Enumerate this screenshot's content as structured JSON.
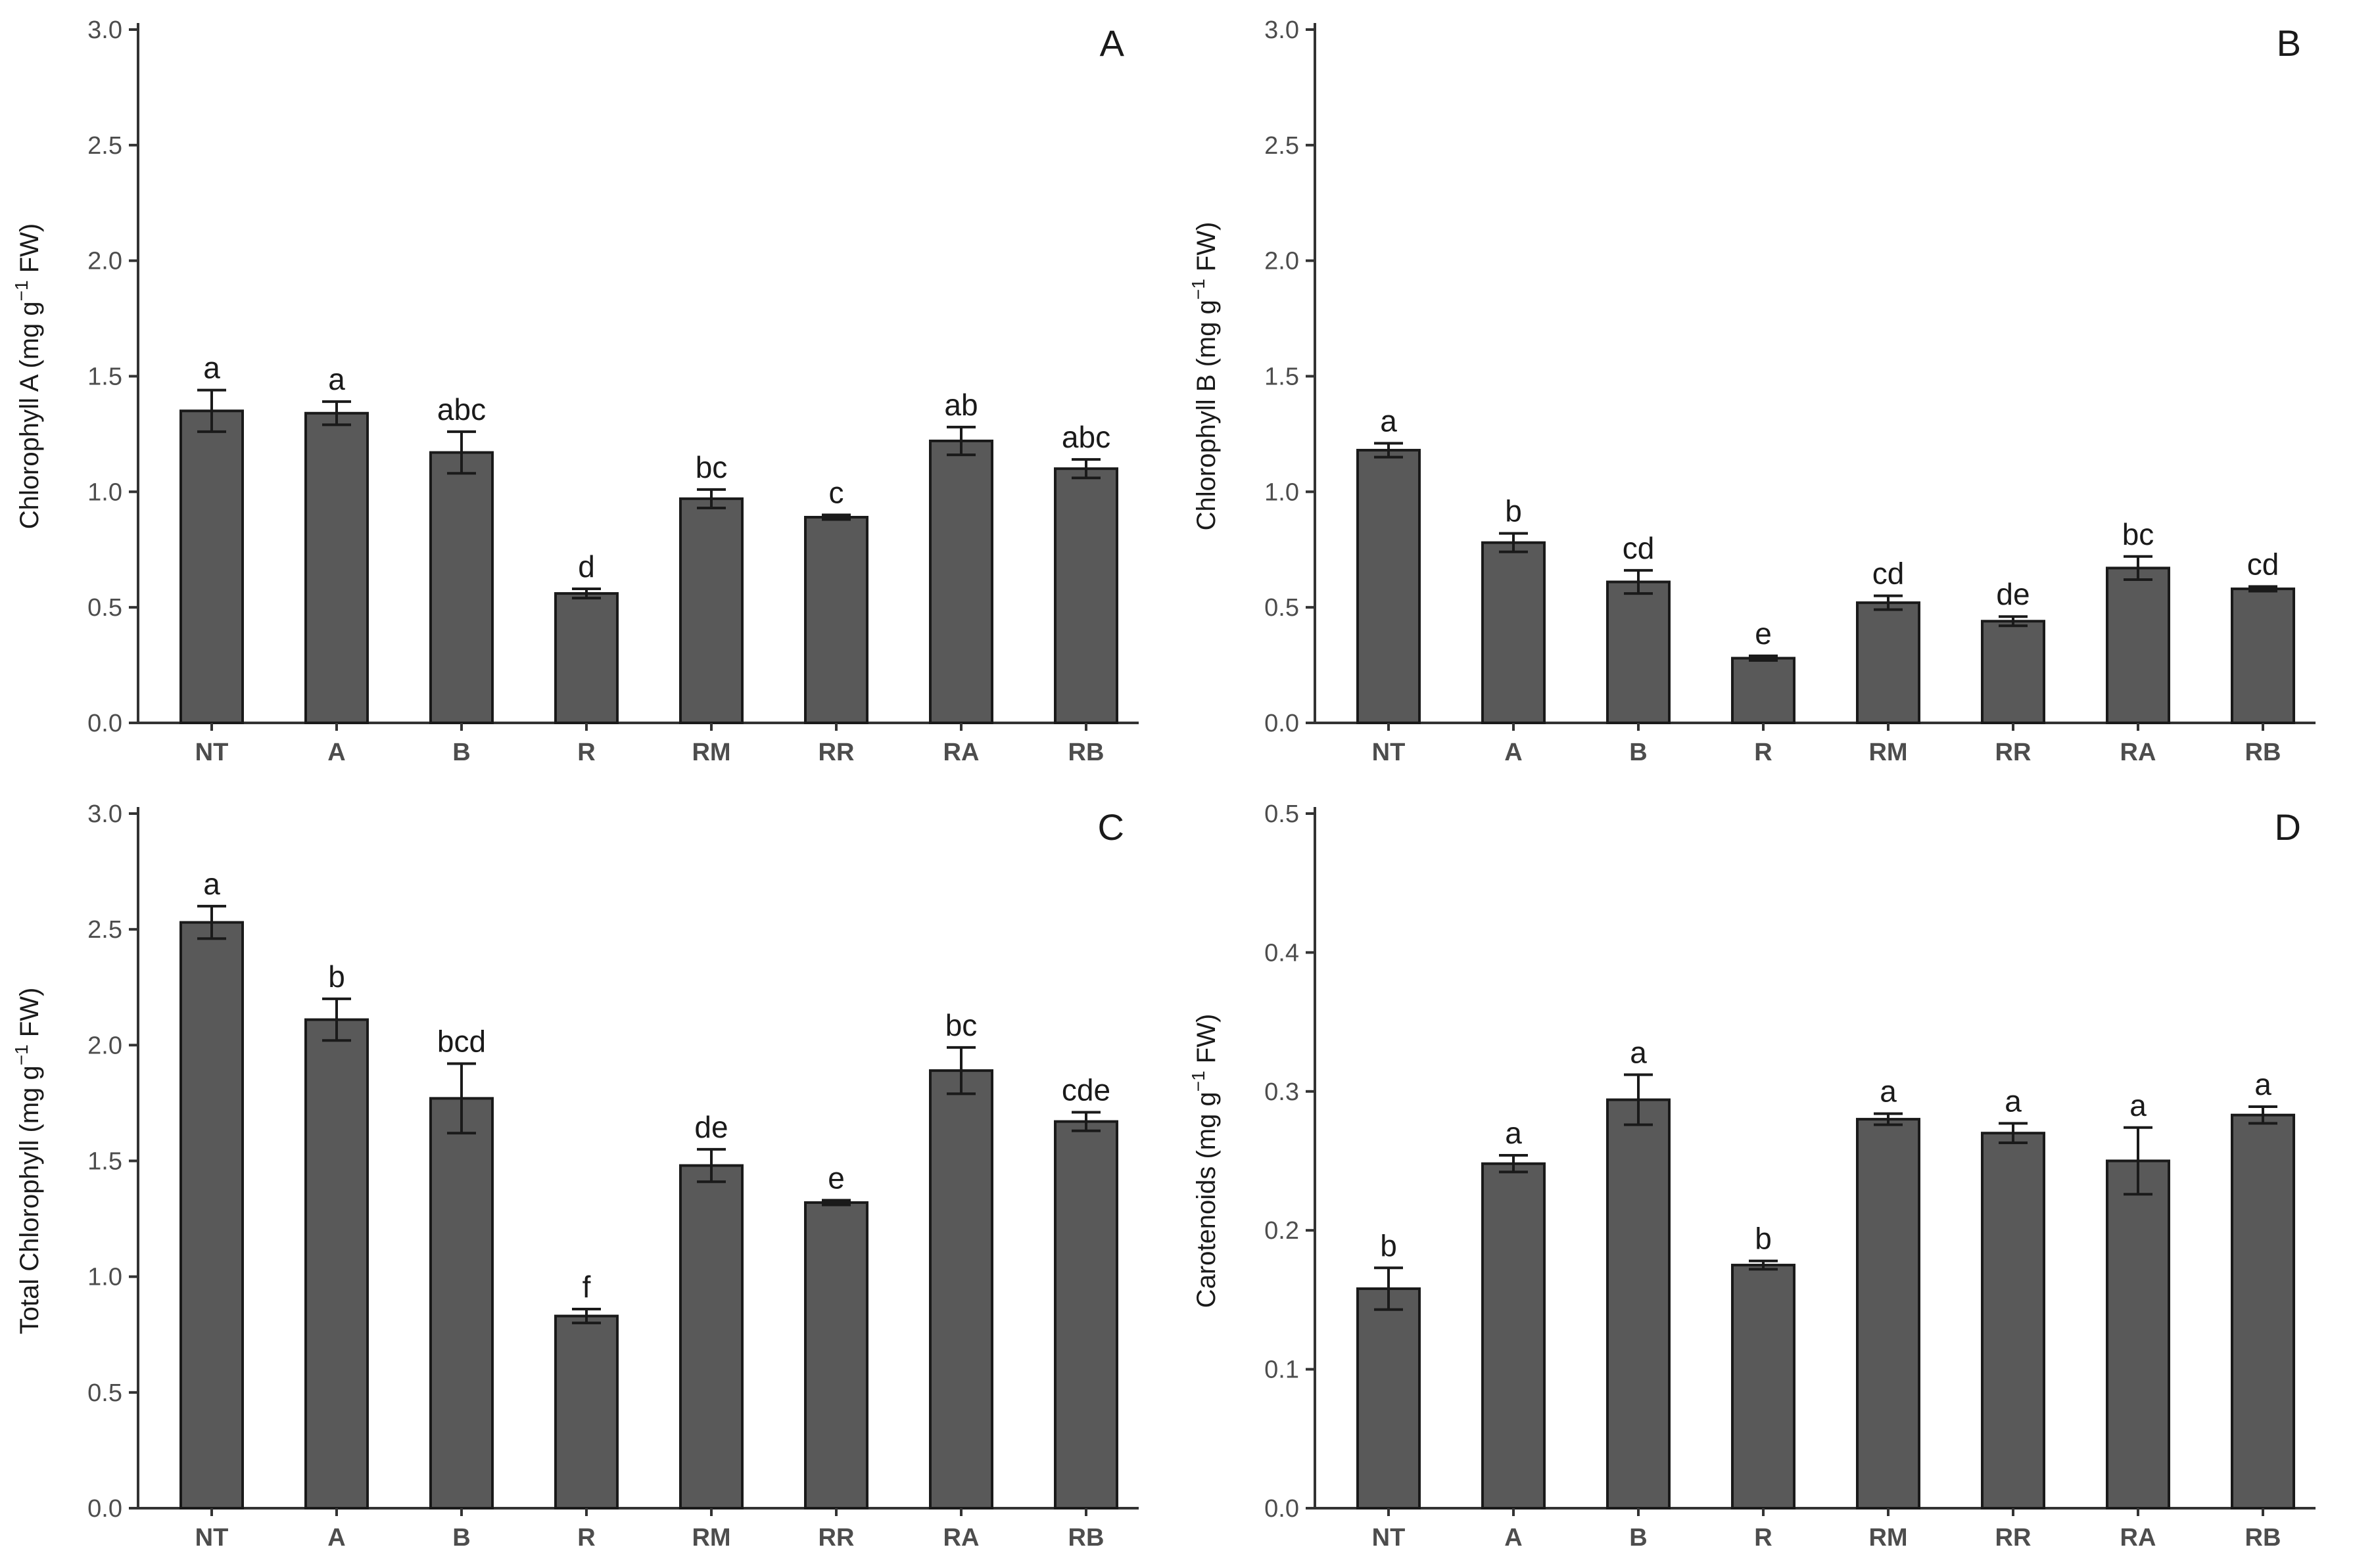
{
  "chart_data": [
    {
      "type": "bar",
      "panel": "A",
      "categories": [
        "NT",
        "A",
        "B",
        "R",
        "RM",
        "RR",
        "RA",
        "RB"
      ],
      "values": [
        1.35,
        1.34,
        1.17,
        0.56,
        0.97,
        0.89,
        1.22,
        1.1
      ],
      "errors": [
        0.09,
        0.05,
        0.09,
        0.02,
        0.04,
        0.01,
        0.06,
        0.04
      ],
      "letters": [
        "a",
        "a",
        "abc",
        "d",
        "bc",
        "c",
        "ab",
        "abc"
      ],
      "ylabel_main": "Chlorophyll A (mg  g",
      "ylabel_sup": "−1",
      "ylabel_tail": " FW)",
      "ylim": [
        0,
        3.0
      ],
      "yticks": [
        "0.0",
        "0.5",
        "1.0",
        "1.5",
        "2.0",
        "2.5",
        "3.0"
      ],
      "ytick_values": [
        0,
        0.5,
        1.0,
        1.5,
        2.0,
        2.5,
        3.0
      ]
    },
    {
      "type": "bar",
      "panel": "B",
      "categories": [
        "NT",
        "A",
        "B",
        "R",
        "RM",
        "RR",
        "RA",
        "RB"
      ],
      "values": [
        1.18,
        0.78,
        0.61,
        0.28,
        0.52,
        0.44,
        0.67,
        0.58
      ],
      "errors": [
        0.03,
        0.04,
        0.05,
        0.01,
        0.03,
        0.02,
        0.05,
        0.01
      ],
      "letters": [
        "a",
        "b",
        "cd",
        "e",
        "cd",
        "de",
        "bc",
        "cd"
      ],
      "ylabel_main": "Chlorophyll B (mg  g",
      "ylabel_sup": "−1",
      "ylabel_tail": " FW)",
      "ylim": [
        0,
        3.0
      ],
      "yticks": [
        "0.0",
        "0.5",
        "1.0",
        "1.5",
        "2.0",
        "2.5",
        "3.0"
      ],
      "ytick_values": [
        0,
        0.5,
        1.0,
        1.5,
        2.0,
        2.5,
        3.0
      ]
    },
    {
      "type": "bar",
      "panel": "C",
      "categories": [
        "NT",
        "A",
        "B",
        "R",
        "RM",
        "RR",
        "RA",
        "RB"
      ],
      "values": [
        2.53,
        2.11,
        1.77,
        0.83,
        1.48,
        1.32,
        1.89,
        1.67
      ],
      "errors": [
        0.07,
        0.09,
        0.15,
        0.03,
        0.07,
        0.01,
        0.1,
        0.04
      ],
      "letters": [
        "a",
        "b",
        "bcd",
        "f",
        "de",
        "e",
        "bc",
        "cde"
      ],
      "ylabel_main": "Total Chlorophyll (mg  g",
      "ylabel_sup": "−1",
      "ylabel_tail": " FW)",
      "ylim": [
        0,
        3.0
      ],
      "yticks": [
        "0.0",
        "0.5",
        "1.0",
        "1.5",
        "2.0",
        "2.5",
        "3.0"
      ],
      "ytick_values": [
        0,
        0.5,
        1.0,
        1.5,
        2.0,
        2.5,
        3.0
      ]
    },
    {
      "type": "bar",
      "panel": "D",
      "categories": [
        "NT",
        "A",
        "B",
        "R",
        "RM",
        "RR",
        "RA",
        "RB"
      ],
      "values": [
        0.158,
        0.248,
        0.294,
        0.175,
        0.28,
        0.27,
        0.25,
        0.283
      ],
      "errors": [
        0.015,
        0.006,
        0.018,
        0.003,
        0.004,
        0.007,
        0.024,
        0.006
      ],
      "letters": [
        "b",
        "a",
        "a",
        "b",
        "a",
        "a",
        "a",
        "a"
      ],
      "ylabel_main": "Carotenoids (mg  g",
      "ylabel_sup": "−1",
      "ylabel_tail": " FW)",
      "ylim": [
        0,
        0.5
      ],
      "yticks": [
        "0.0",
        "0.1",
        "0.2",
        "0.3",
        "0.4",
        "0.5"
      ],
      "ytick_values": [
        0,
        0.1,
        0.2,
        0.3,
        0.4,
        0.5
      ]
    }
  ]
}
